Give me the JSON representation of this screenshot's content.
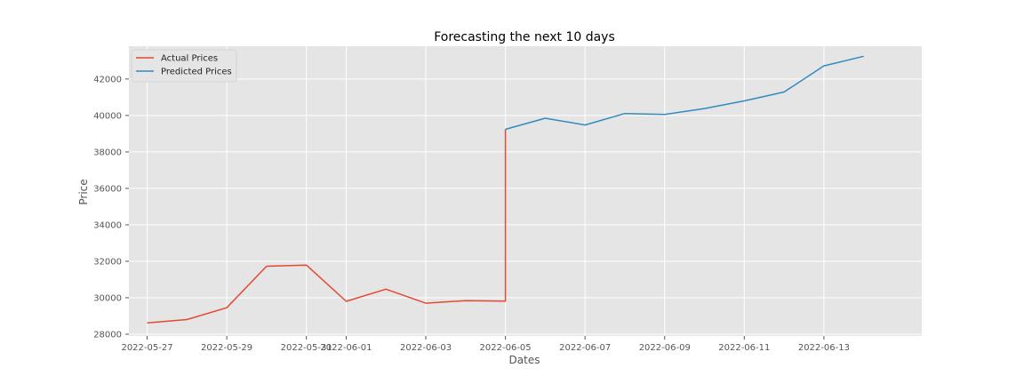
{
  "chart_data": {
    "type": "line",
    "title": "Forecasting the next 10 days",
    "xlabel": "Dates",
    "ylabel": "Price",
    "ylim": [
      27900,
      43800
    ],
    "xlim": [
      "2022-05-26T13:00",
      "2022-06-15T11:00"
    ],
    "grid": true,
    "legend_position": "top-left",
    "background": "#e5e5e5",
    "x_ticks": [
      "2022-05-27",
      "2022-05-29",
      "2022-05-31",
      "2022-06-01",
      "2022-06-03",
      "2022-06-05",
      "2022-06-07",
      "2022-06-09",
      "2022-06-11",
      "2022-06-13"
    ],
    "x_tick_labels": [
      "2022-05-27",
      "2022-05-29",
      "2022-05-31",
      "2022-06-01",
      "2022-06-03",
      "2022-06-05",
      "2022-06-07",
      "2022-06-09",
      "2022-06-11",
      "2022-06-13"
    ],
    "y_ticks": [
      28000,
      30000,
      32000,
      34000,
      36000,
      38000,
      40000,
      42000
    ],
    "y_tick_labels": [
      "28000",
      "30000",
      "32000",
      "34000",
      "36000",
      "38000",
      "40000",
      "42000"
    ],
    "series": [
      {
        "name": "Actual Prices",
        "color": "#e24a33",
        "points": [
          {
            "x": "2022-05-27",
            "y": 28620
          },
          {
            "x": "2022-05-28",
            "y": 28800
          },
          {
            "x": "2022-05-29",
            "y": 29450
          },
          {
            "x": "2022-05-30",
            "y": 31730
          },
          {
            "x": "2022-05-31",
            "y": 31790
          },
          {
            "x": "2022-06-01",
            "y": 29800
          },
          {
            "x": "2022-06-02",
            "y": 30470
          },
          {
            "x": "2022-06-03",
            "y": 29700
          },
          {
            "x": "2022-06-04",
            "y": 29840
          },
          {
            "x": "2022-06-05",
            "y": 29810
          },
          {
            "x": "2022-06-05",
            "y": 39240
          }
        ]
      },
      {
        "name": "Predicted Prices",
        "color": "#348abd",
        "points": [
          {
            "x": "2022-06-05",
            "y": 39240
          },
          {
            "x": "2022-06-06",
            "y": 39850
          },
          {
            "x": "2022-06-07",
            "y": 39480
          },
          {
            "x": "2022-06-08",
            "y": 40110
          },
          {
            "x": "2022-06-09",
            "y": 40060
          },
          {
            "x": "2022-06-10",
            "y": 40380
          },
          {
            "x": "2022-06-11",
            "y": 40800
          },
          {
            "x": "2022-06-12",
            "y": 41290
          },
          {
            "x": "2022-06-13",
            "y": 42720
          },
          {
            "x": "2022-06-14",
            "y": 43250
          }
        ]
      }
    ]
  }
}
